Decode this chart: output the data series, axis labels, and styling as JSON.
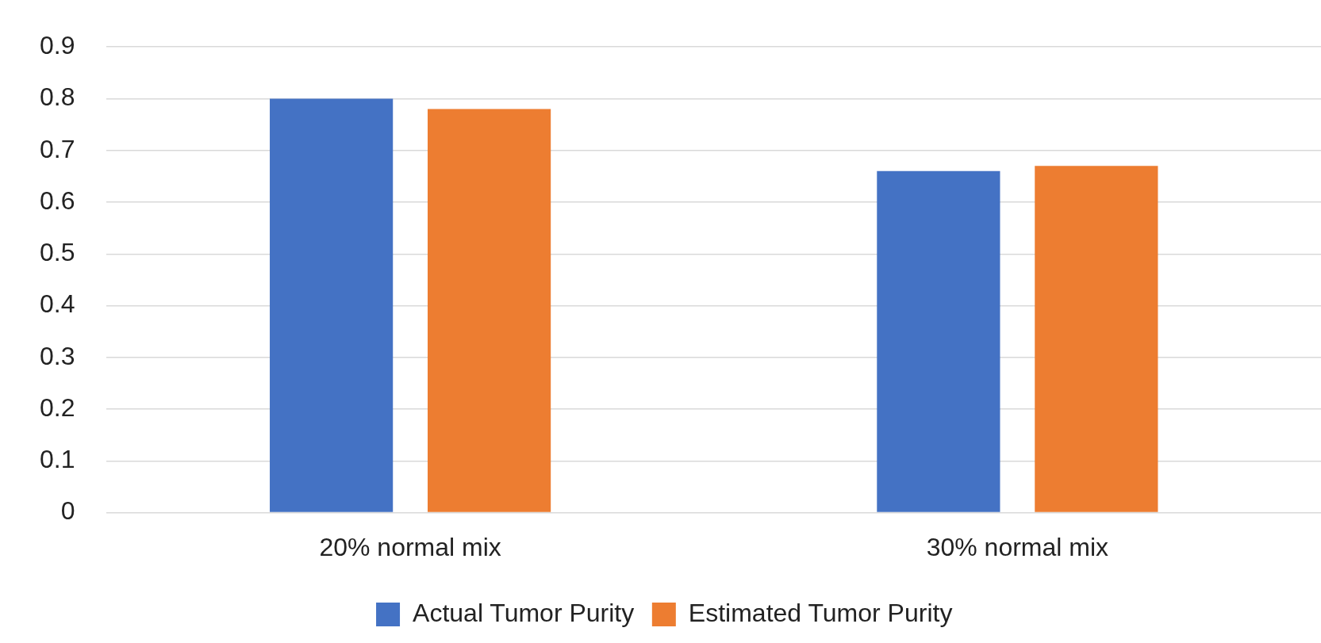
{
  "chart_data": {
    "type": "bar",
    "categories": [
      "20% normal mix",
      "30% normal mix"
    ],
    "series": [
      {
        "name": "Actual Tumor Purity",
        "color": "#4472c4",
        "values": [
          0.8,
          0.66
        ]
      },
      {
        "name": "Estimated Tumor Purity",
        "color": "#ed7d31",
        "values": [
          0.78,
          0.67
        ]
      }
    ],
    "ylim": [
      0,
      0.9
    ],
    "yticks": [
      0,
      0.1,
      0.2,
      0.3,
      0.4,
      0.5,
      0.6,
      0.7,
      0.8,
      0.9
    ],
    "grid": "y",
    "legend": "bottom"
  }
}
